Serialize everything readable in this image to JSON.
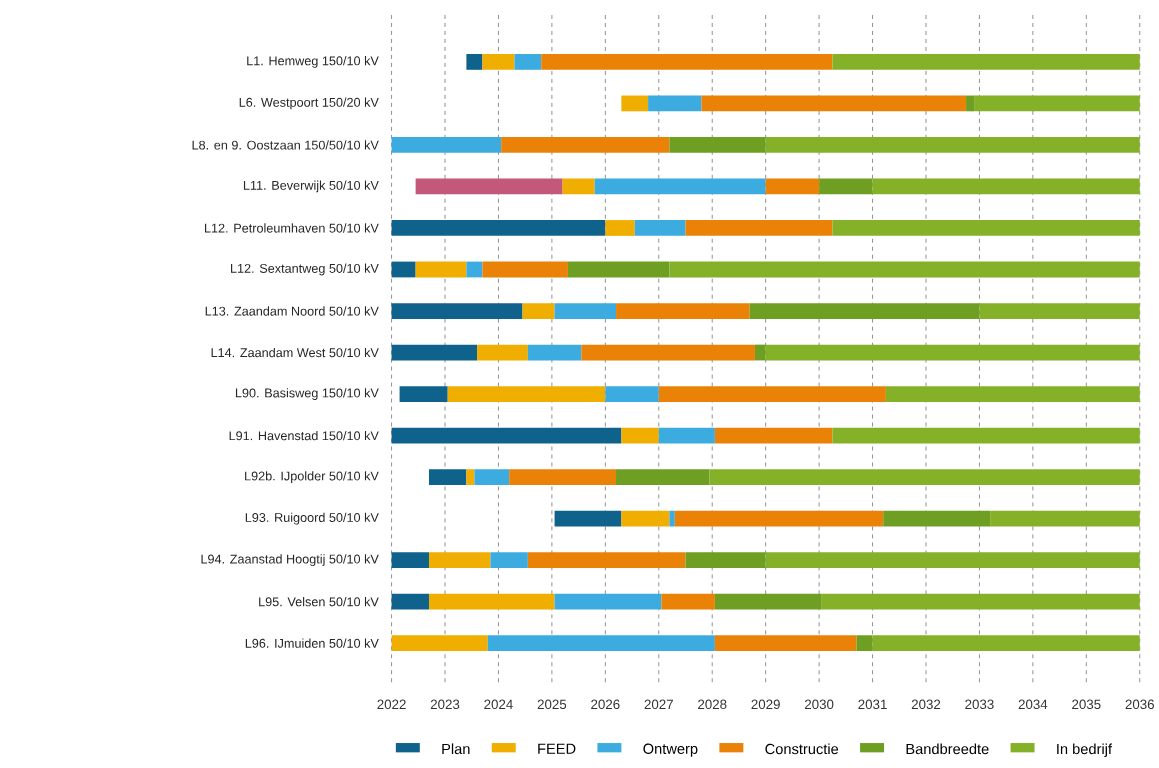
{
  "chart_data": {
    "type": "bar",
    "orientation": "horizontal",
    "categories": [
      "L1. Hemweg 150/10 kV",
      "L6. Westpoort 150/20 kV",
      "L8. en 9. Oostzaan 150/50/10 kV",
      "L11. Beverwijk 50/10 kV",
      "L12. Petroleumhaven 50/10 kV",
      "L12. Sextantweg 50/10 kV",
      "L13. Zaandam Noord 50/10 kV",
      "L14. Zaandam West 50/10 kV",
      "L90. Basisweg 150/10 kV",
      "L91. Havenstad 150/10 kV",
      "L92b. IJpolder 50/10 kV",
      "L93. Ruigoord 50/10 kV",
      "L94. Zaanstad Hoogtij 50/10 kV",
      "L95. Velsen 50/10 kV",
      "L96. IJmuiden 50/10 kV"
    ],
    "series": [
      {
        "color": "#c4587a",
        "base": [
          null,
          null,
          null,
          2022.45,
          null,
          null,
          null,
          null,
          null,
          null,
          null,
          null,
          null,
          null,
          null
        ],
        "values": [
          null,
          null,
          null,
          2.75,
          null,
          null,
          null,
          null,
          null,
          null,
          null,
          null,
          null,
          null,
          null
        ]
      },
      {
        "name": "Plan",
        "color": "#0e628b",
        "base": [
          2023.4,
          null,
          null,
          null,
          2022,
          2022,
          2022,
          2022,
          2022.15,
          2022,
          2022.7,
          2025.05,
          2022,
          2022,
          null
        ],
        "values": [
          0.3,
          null,
          null,
          null,
          4.0,
          0.45,
          2.45,
          1.6,
          0.9,
          4.3,
          0.7,
          1.25,
          0.7,
          0.7,
          null
        ]
      },
      {
        "name": "FEED",
        "color": "#f0ae00",
        "base": [
          2023.7,
          2026.3,
          null,
          2025.2,
          2026.0,
          2022.45,
          2024.45,
          2023.6,
          2023.05,
          2026.3,
          2023.4,
          2026.3,
          2022.7,
          2022.7,
          2022
        ],
        "values": [
          0.6,
          0.5,
          null,
          0.6,
          0.55,
          0.95,
          0.6,
          0.95,
          2.95,
          0.7,
          0.15,
          0.9,
          1.15,
          2.35,
          1.8
        ]
      },
      {
        "name": "Ontwerp",
        "color": "#3cace0",
        "base": [
          2024.3,
          2026.8,
          2022,
          2025.8,
          2026.55,
          2023.4,
          2025.05,
          2024.55,
          2026.0,
          2027.0,
          2023.55,
          2027.2,
          2023.85,
          2025.05,
          2023.8
        ],
        "values": [
          0.5,
          1.0,
          2.05,
          3.2,
          0.95,
          0.3,
          1.15,
          1.0,
          1.0,
          1.05,
          0.65,
          0.1,
          0.7,
          2.0,
          4.25
        ]
      },
      {
        "name": "Constructie",
        "color": "#ea8207",
        "base": [
          2024.8,
          2027.8,
          2024.05,
          2029.0,
          2027.5,
          2023.7,
          2026.2,
          2025.55,
          2027.0,
          2028.05,
          2024.2,
          2027.3,
          2024.55,
          2027.05,
          2028.05
        ],
        "values": [
          5.45,
          4.95,
          3.15,
          1.0,
          2.75,
          1.6,
          2.5,
          3.25,
          4.25,
          2.2,
          2.0,
          3.9,
          2.95,
          1.0,
          2.65
        ]
      },
      {
        "name": "Bandbreedte",
        "color": "#6e9e22",
        "base": [
          null,
          2032.75,
          2027.2,
          2030.0,
          null,
          2025.3,
          2028.7,
          2028.8,
          null,
          null,
          2026.2,
          2031.2,
          2027.5,
          2028.05,
          2030.7
        ],
        "values": [
          null,
          0.15,
          1.8,
          1.0,
          null,
          1.9,
          4.3,
          0.2,
          null,
          null,
          1.75,
          2.0,
          1.5,
          2.0,
          0.3
        ]
      },
      {
        "name": "In bedrijf",
        "color": "#84b128",
        "base": [
          2030.25,
          2032.9,
          2029.0,
          2031.0,
          2030.25,
          2027.2,
          2033.0,
          2029.0,
          2031.25,
          2030.25,
          2027.95,
          2033.2,
          2029.0,
          2030.05,
          2031.0
        ],
        "values": [
          5.75,
          3.1,
          7.0,
          5.0,
          5.75,
          8.8,
          3.0,
          7.0,
          4.75,
          5.75,
          8.05,
          2.8,
          7.0,
          5.95,
          5.0
        ]
      }
    ],
    "xlim": [
      2022,
      2036
    ],
    "xticks": [
      2022,
      2023,
      2024,
      2025,
      2026,
      2027,
      2028,
      2029,
      2030,
      2031,
      2032,
      2033,
      2034,
      2035,
      2036
    ],
    "grid": "x",
    "legend": "bottom"
  }
}
